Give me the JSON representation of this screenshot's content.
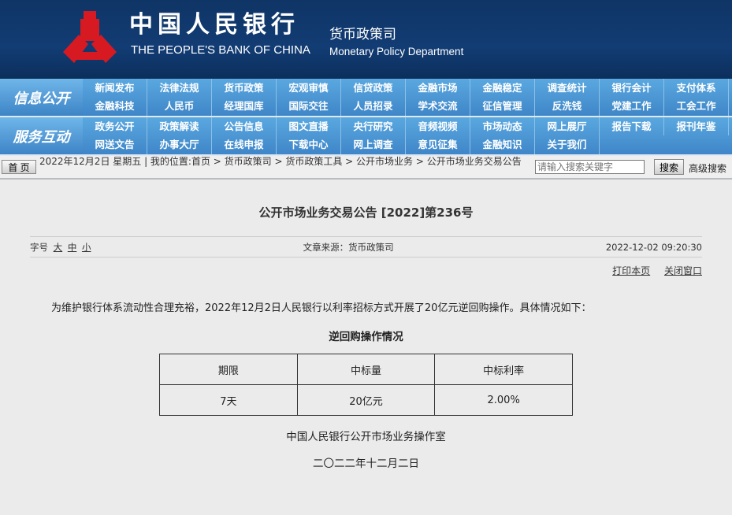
{
  "header": {
    "logo_cn": "中国人民银行",
    "logo_en": "THE PEOPLE'S BANK OF CHINA",
    "dept_cn": "货币政策司",
    "dept_en": "Monetary Policy Department",
    "logo_color": "#d71a21"
  },
  "nav": [
    {
      "label": "信息公开",
      "items": [
        "新闻发布",
        "法律法规",
        "货币政策",
        "宏观审慎",
        "信贷政策",
        "金融市场",
        "金融稳定",
        "调查统计",
        "银行会计",
        "支付体系",
        "金融科技",
        "人民币",
        "经理国库",
        "国际交往",
        "人员招录",
        "学术交流",
        "征信管理",
        "反洗钱",
        "党建工作",
        "工会工作"
      ]
    },
    {
      "label": "服务互动",
      "items": [
        "政务公开",
        "政策解读",
        "公告信息",
        "图文直播",
        "央行研究",
        "音频视频",
        "市场动态",
        "网上展厅",
        "报告下载",
        "报刊年鉴",
        "网送文告",
        "办事大厅",
        "在线申报",
        "下载中心",
        "网上调查",
        "意见征集",
        "金融知识",
        "关于我们"
      ]
    }
  ],
  "crumbbar": {
    "home": "首 页",
    "text": "2022年12月2日 星期五 | 我的位置:首页 > 货币政策司 > 货币政策工具 > 公开市场业务 > 公开市场业务交易公告",
    "search_placeholder": "请输入搜索关键字",
    "search_button": "搜索",
    "advanced": "高级搜索"
  },
  "article": {
    "title": "公开市场业务交易公告 [2022]第236号",
    "font_label": "字号",
    "font_sizes": [
      "大",
      "中",
      "小"
    ],
    "source": "文章来源：货币政策司",
    "datetime": "2022-12-02 09:20:30",
    "print": "打印本页",
    "close": "关闭窗口",
    "paragraph": "为维护银行体系流动性合理充裕，2022年12月2日人民银行以利率招标方式开展了20亿元逆回购操作。具体情况如下：",
    "table_caption": "逆回购操作情况",
    "table_headers": [
      "期限",
      "中标量",
      "中标利率"
    ],
    "table_rows": [
      [
        "7天",
        "20亿元",
        "2.00%"
      ]
    ],
    "signature": "中国人民银行公开市场业务操作室",
    "date": "二〇二二年十二月二日"
  }
}
